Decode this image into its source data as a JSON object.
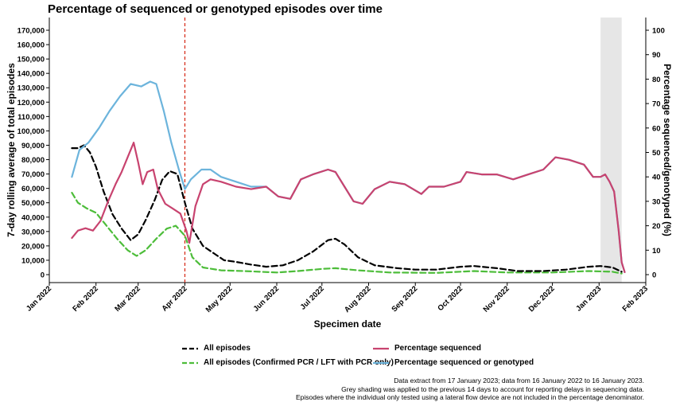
{
  "chart_data": {
    "type": "line",
    "title": "Percentage of sequenced or genotyped episodes over time",
    "xlabel": "Specimen date",
    "ylabel_left": "7-day rolling average of total episodes",
    "ylabel_right": "Percentage sequenced/genotyped (%)",
    "x_ticks": [
      "Jan 2022",
      "Feb 2022",
      "Mar 2022",
      "Apr 2022",
      "May 2022",
      "Jun 2022",
      "Jul 2022",
      "Aug 2022",
      "Sep 2022",
      "Oct 2022",
      "Nov 2022",
      "Dec 2022",
      "Jan 2023",
      "Feb 2023"
    ],
    "y_left_ticks": [
      "0",
      "10,000",
      "20,000",
      "30,000",
      "40,000",
      "50,000",
      "60,000",
      "70,000",
      "80,000",
      "90,000",
      "100,000",
      "110,000",
      "120,000",
      "130,000",
      "140,000",
      "150,000",
      "160,000",
      "170,000"
    ],
    "y_right_ticks": [
      "0",
      "10",
      "20",
      "30",
      "40",
      "50",
      "60",
      "70",
      "80",
      "90",
      "100"
    ],
    "ylim_left": [
      0,
      170000
    ],
    "ylim_right": [
      0,
      100
    ],
    "xlim": [
      "2022-01-01",
      "2023-02-01"
    ],
    "vline": {
      "date": "2022-04-01",
      "color": "#d7301f",
      "style": "dashed"
    },
    "shaded_region": {
      "from": "2023-01-02",
      "to": "2023-01-16",
      "color": "#e6e6e6"
    },
    "series": [
      {
        "name": "All episodes",
        "axis": "left",
        "color": "#000000",
        "dash": "dashed",
        "points": [
          [
            "2022-01-16",
            88000
          ],
          [
            "2022-01-20",
            88000
          ],
          [
            "2022-01-24",
            90000
          ],
          [
            "2022-01-28",
            85000
          ],
          [
            "2022-02-01",
            75000
          ],
          [
            "2022-02-06",
            58000
          ],
          [
            "2022-02-12",
            42000
          ],
          [
            "2022-02-18",
            32000
          ],
          [
            "2022-02-24",
            24000
          ],
          [
            "2022-03-01",
            28000
          ],
          [
            "2022-03-06",
            38000
          ],
          [
            "2022-03-12",
            52000
          ],
          [
            "2022-03-17",
            66000
          ],
          [
            "2022-03-22",
            72000
          ],
          [
            "2022-03-27",
            70000
          ],
          [
            "2022-04-01",
            50000
          ],
          [
            "2022-04-06",
            32000
          ],
          [
            "2022-04-13",
            20000
          ],
          [
            "2022-04-20",
            15000
          ],
          [
            "2022-04-27",
            10000
          ],
          [
            "2022-05-04",
            9000
          ],
          [
            "2022-05-15",
            7000
          ],
          [
            "2022-05-25",
            5500
          ],
          [
            "2022-06-05",
            6500
          ],
          [
            "2022-06-15",
            10000
          ],
          [
            "2022-06-25",
            16000
          ],
          [
            "2022-07-05",
            24000
          ],
          [
            "2022-07-10",
            25000
          ],
          [
            "2022-07-16",
            21000
          ],
          [
            "2022-07-25",
            12000
          ],
          [
            "2022-08-05",
            6500
          ],
          [
            "2022-08-20",
            4500
          ],
          [
            "2022-09-01",
            3500
          ],
          [
            "2022-09-15",
            3500
          ],
          [
            "2022-10-01",
            5500
          ],
          [
            "2022-10-10",
            6000
          ],
          [
            "2022-10-25",
            4500
          ],
          [
            "2022-11-08",
            2500
          ],
          [
            "2022-11-25",
            2500
          ],
          [
            "2022-12-10",
            3500
          ],
          [
            "2022-12-25",
            5500
          ],
          [
            "2023-01-02",
            6000
          ],
          [
            "2023-01-10",
            5000
          ],
          [
            "2023-01-16",
            2000
          ]
        ]
      },
      {
        "name": "All episodes (Confirmed PCR / LFT with PCR only)",
        "axis": "left",
        "color": "#4dbd3a",
        "dash": "dashed",
        "points": [
          [
            "2022-01-16",
            57000
          ],
          [
            "2022-01-20",
            50000
          ],
          [
            "2022-01-26",
            46000
          ],
          [
            "2022-02-01",
            43000
          ],
          [
            "2022-02-08",
            34000
          ],
          [
            "2022-02-15",
            25000
          ],
          [
            "2022-02-22",
            17000
          ],
          [
            "2022-02-28",
            13000
          ],
          [
            "2022-03-06",
            17000
          ],
          [
            "2022-03-13",
            25000
          ],
          [
            "2022-03-20",
            32000
          ],
          [
            "2022-03-26",
            34000
          ],
          [
            "2022-04-01",
            27000
          ],
          [
            "2022-04-06",
            12000
          ],
          [
            "2022-04-13",
            5000
          ],
          [
            "2022-04-25",
            3000
          ],
          [
            "2022-05-10",
            2500
          ],
          [
            "2022-06-01",
            1500
          ],
          [
            "2022-06-15",
            2500
          ],
          [
            "2022-07-01",
            4000
          ],
          [
            "2022-07-10",
            4500
          ],
          [
            "2022-07-25",
            3000
          ],
          [
            "2022-08-15",
            1500
          ],
          [
            "2022-09-15",
            1200
          ],
          [
            "2022-10-10",
            2500
          ],
          [
            "2022-11-01",
            1500
          ],
          [
            "2022-12-01",
            1500
          ],
          [
            "2022-12-25",
            2500
          ],
          [
            "2023-01-10",
            2000
          ],
          [
            "2023-01-16",
            800
          ]
        ]
      },
      {
        "name": "Percentage sequenced",
        "axis": "right",
        "color": "#c8436f",
        "dash": "solid",
        "points": [
          [
            "2022-01-16",
            15
          ],
          [
            "2022-01-20",
            18
          ],
          [
            "2022-01-25",
            19
          ],
          [
            "2022-01-30",
            18
          ],
          [
            "2022-02-04",
            22
          ],
          [
            "2022-02-09",
            30
          ],
          [
            "2022-02-14",
            37
          ],
          [
            "2022-02-18",
            42
          ],
          [
            "2022-02-22",
            48
          ],
          [
            "2022-02-26",
            54
          ],
          [
            "2022-03-01",
            46
          ],
          [
            "2022-03-04",
            37
          ],
          [
            "2022-03-07",
            42
          ],
          [
            "2022-03-11",
            43
          ],
          [
            "2022-03-14",
            35
          ],
          [
            "2022-03-19",
            29
          ],
          [
            "2022-03-24",
            27
          ],
          [
            "2022-03-29",
            25
          ],
          [
            "2022-04-02",
            18
          ],
          [
            "2022-04-04",
            13
          ],
          [
            "2022-04-08",
            28
          ],
          [
            "2022-04-13",
            37
          ],
          [
            "2022-04-18",
            39
          ],
          [
            "2022-04-25",
            38
          ],
          [
            "2022-05-05",
            36
          ],
          [
            "2022-05-15",
            35
          ],
          [
            "2022-05-25",
            36
          ],
          [
            "2022-06-02",
            32
          ],
          [
            "2022-06-10",
            31
          ],
          [
            "2022-06-17",
            39
          ],
          [
            "2022-06-25",
            41
          ],
          [
            "2022-07-05",
            43
          ],
          [
            "2022-07-10",
            42
          ],
          [
            "2022-07-16",
            36
          ],
          [
            "2022-07-22",
            30
          ],
          [
            "2022-07-28",
            29
          ],
          [
            "2022-08-05",
            35
          ],
          [
            "2022-08-15",
            38
          ],
          [
            "2022-08-25",
            37
          ],
          [
            "2022-09-05",
            33
          ],
          [
            "2022-09-10",
            36
          ],
          [
            "2022-09-20",
            36
          ],
          [
            "2022-10-01",
            38
          ],
          [
            "2022-10-05",
            42
          ],
          [
            "2022-10-15",
            41
          ],
          [
            "2022-10-25",
            41
          ],
          [
            "2022-11-05",
            39
          ],
          [
            "2022-11-15",
            41
          ],
          [
            "2022-11-25",
            43
          ],
          [
            "2022-12-03",
            48
          ],
          [
            "2022-12-12",
            47
          ],
          [
            "2022-12-22",
            45
          ],
          [
            "2022-12-28",
            40
          ],
          [
            "2023-01-02",
            40
          ],
          [
            "2023-01-05",
            41
          ],
          [
            "2023-01-08",
            38
          ],
          [
            "2023-01-11",
            34
          ],
          [
            "2023-01-14",
            18
          ],
          [
            "2023-01-16",
            5
          ],
          [
            "2023-01-18",
            1
          ]
        ]
      },
      {
        "name": "Percentage sequenced or genotyped",
        "axis": "right",
        "color": "#6cb4dc",
        "dash": "solid",
        "points": [
          [
            "2022-01-16",
            40
          ],
          [
            "2022-01-21",
            51
          ],
          [
            "2022-01-27",
            54
          ],
          [
            "2022-02-03",
            60
          ],
          [
            "2022-02-10",
            67
          ],
          [
            "2022-02-17",
            73
          ],
          [
            "2022-02-24",
            78
          ],
          [
            "2022-03-03",
            77
          ],
          [
            "2022-03-09",
            79
          ],
          [
            "2022-03-13",
            78
          ],
          [
            "2022-03-18",
            67
          ],
          [
            "2022-03-23",
            54
          ],
          [
            "2022-03-28",
            43
          ],
          [
            "2022-04-01",
            35
          ],
          [
            "2022-04-05",
            39
          ],
          [
            "2022-04-12",
            43
          ],
          [
            "2022-04-18",
            43
          ],
          [
            "2022-04-25",
            40
          ],
          [
            "2022-05-05",
            38
          ],
          [
            "2022-05-15",
            36
          ],
          [
            "2022-05-25",
            36
          ],
          [
            "2022-06-02",
            32
          ],
          [
            "2022-06-10",
            31
          ],
          [
            "2022-06-17",
            39
          ],
          [
            "2022-06-25",
            41
          ],
          [
            "2022-07-05",
            43
          ],
          [
            "2022-07-10",
            42
          ],
          [
            "2022-07-16",
            36
          ],
          [
            "2022-07-22",
            30
          ],
          [
            "2022-07-28",
            29
          ],
          [
            "2022-08-05",
            35
          ],
          [
            "2022-08-15",
            38
          ],
          [
            "2022-08-25",
            37
          ],
          [
            "2022-09-05",
            33
          ],
          [
            "2022-09-10",
            36
          ],
          [
            "2022-09-20",
            36
          ],
          [
            "2022-10-01",
            38
          ],
          [
            "2022-10-05",
            42
          ],
          [
            "2022-10-15",
            41
          ],
          [
            "2022-10-25",
            41
          ],
          [
            "2022-11-05",
            39
          ],
          [
            "2022-11-15",
            41
          ],
          [
            "2022-11-25",
            43
          ],
          [
            "2022-12-03",
            48
          ],
          [
            "2022-12-12",
            47
          ],
          [
            "2022-12-22",
            45
          ],
          [
            "2022-12-28",
            40
          ],
          [
            "2023-01-02",
            40
          ],
          [
            "2023-01-05",
            41
          ],
          [
            "2023-01-08",
            38
          ],
          [
            "2023-01-11",
            34
          ],
          [
            "2023-01-14",
            18
          ],
          [
            "2023-01-16",
            5
          ],
          [
            "2023-01-18",
            1
          ]
        ]
      }
    ],
    "legend": [
      {
        "label": "All episodes",
        "color": "#000000",
        "dash": "dashed"
      },
      {
        "label": "Percentage sequenced",
        "color": "#c8436f",
        "dash": "solid"
      },
      {
        "label": "All episodes (Confirmed PCR / LFT with PCR only)",
        "color": "#4dbd3a",
        "dash": "dashed"
      },
      {
        "label": "Percentage sequenced or genotyped",
        "color": "#6cb4dc",
        "dash": "solid"
      }
    ],
    "legend_position": "bottom",
    "notes": [
      "Data extract from 17 January 2023; data from 16 January 2022 to 16 January 2023.",
      "Grey shading was applied to the previous 14 days to account for reporting delays in sequencing data.",
      "Episodes where the individual only tested using a lateral flow device are not included in the percentage denominator."
    ]
  }
}
